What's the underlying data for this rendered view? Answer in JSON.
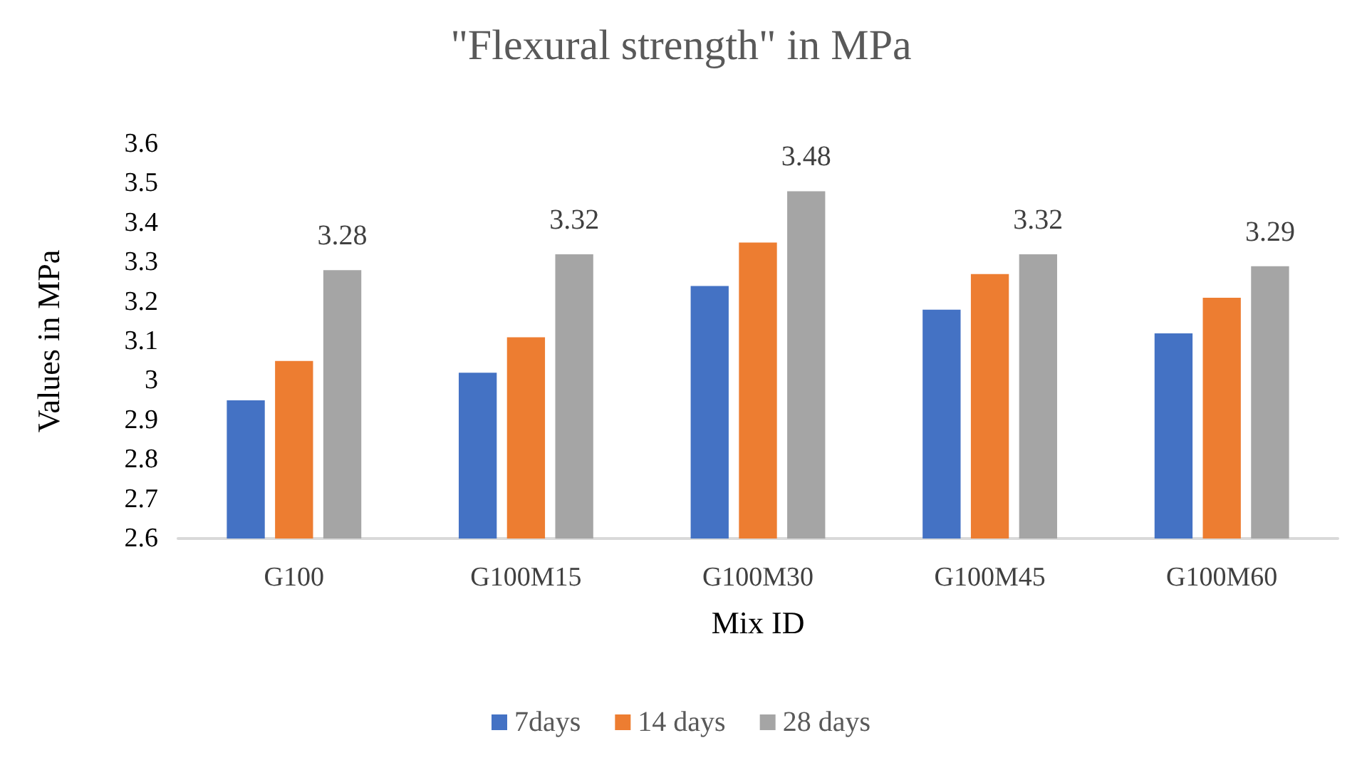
{
  "chart_data": {
    "type": "bar",
    "title": "\"Flexural strength\" in MPa",
    "xlabel": "Mix ID",
    "ylabel": "Values in MPa",
    "categories": [
      "G100",
      "G100M15",
      "G100M30",
      "G100M45",
      "G100M60"
    ],
    "series": [
      {
        "name": "7days",
        "color": "#4472c4",
        "values": [
          2.95,
          3.02,
          3.24,
          3.18,
          3.12
        ]
      },
      {
        "name": "14 days",
        "color": "#ed7d31",
        "values": [
          3.05,
          3.11,
          3.35,
          3.27,
          3.21
        ]
      },
      {
        "name": "28 days",
        "color": "#a5a5a5",
        "values": [
          3.28,
          3.32,
          3.48,
          3.32,
          3.29
        ],
        "value_labels": [
          "3.28",
          "3.32",
          "3.48",
          "3.32",
          "3.29"
        ]
      }
    ],
    "ylim": [
      2.6,
      3.6
    ],
    "yticks": [
      2.6,
      2.7,
      2.8,
      2.9,
      3,
      3.1,
      3.2,
      3.3,
      3.4,
      3.5,
      3.6
    ],
    "grid": false,
    "legend": "bottom"
  }
}
